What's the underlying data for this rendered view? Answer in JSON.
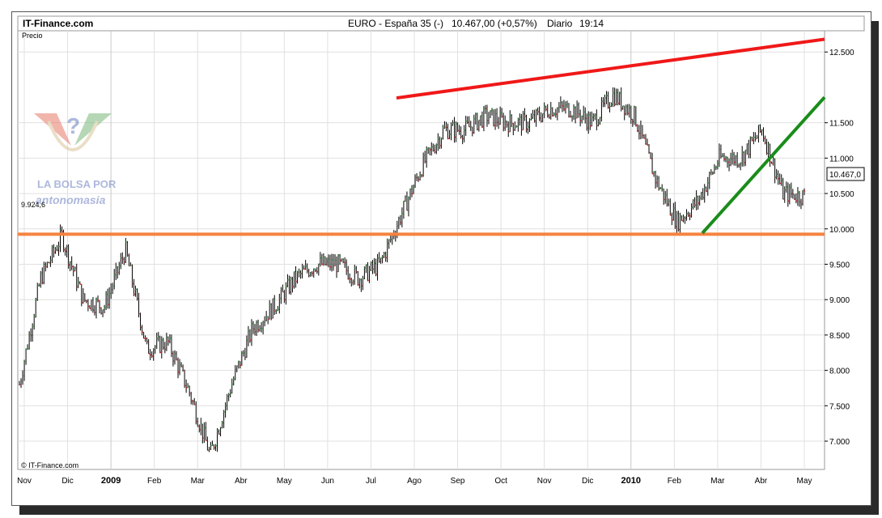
{
  "header": {
    "site": "IT-Finance.com",
    "instrument": "EURO - España 35 (-)",
    "quote": "10.467,00 (+0,57%)",
    "period": "Diario",
    "time": "19:14"
  },
  "logo": {
    "line1": "LA BOLSA POR",
    "line2": "antonomasia"
  },
  "copyright": "© IT-Finance.com",
  "chart_data": {
    "type": "line",
    "title": "EURO - España 35 (-)  10.467,00 (+0,57%)  Diario  19:14",
    "ylabel": "Precio",
    "ylim": [
      6600,
      12800
    ],
    "y_ticks": [
      7000,
      7500,
      8000,
      8500,
      9000,
      9500,
      10000,
      10500,
      11000,
      11500,
      12500
    ],
    "y_tick_labels": [
      "7.000",
      "7.500",
      "8.000",
      "8.500",
      "9.000",
      "9.500",
      "10.000",
      "10.500",
      "11.000",
      "11.500",
      "12.500"
    ],
    "x_ticks": [
      "Nov",
      "Dic",
      "2009",
      "Feb",
      "Mar",
      "Abr",
      "May",
      "Jun",
      "Jul",
      "Ago",
      "Sep",
      "Oct",
      "Nov",
      "Dic",
      "2010",
      "Feb",
      "Mar",
      "Abr",
      "May"
    ],
    "x_tick_bold": [
      false,
      false,
      true,
      false,
      false,
      false,
      false,
      false,
      false,
      false,
      false,
      false,
      false,
      false,
      true,
      false,
      false,
      false,
      false
    ],
    "last_value": 10467,
    "last_value_label": "10.467,0",
    "grid": true,
    "series": [
      {
        "name": "",
        "x": [
          "Nov 08",
          "Nov 08",
          "Nov 08",
          "Dic 08",
          "Dic 08",
          "2009",
          "Feb",
          "Feb",
          "Mar",
          "Mar",
          "Abr",
          "Abr",
          "May",
          "May",
          "Jun",
          "Jun",
          "Jul",
          "Jul",
          "Ago",
          "Ago",
          "Sep",
          "Sep",
          "Oct",
          "Oct",
          "Nov",
          "Nov",
          "Dic",
          "Dic",
          "2010",
          "2010",
          "Feb",
          "Feb",
          "Mar",
          "Mar",
          "Abr",
          "Abr",
          "Abr",
          "May"
        ],
        "values": [
          7800,
          9300,
          9900,
          9000,
          8900,
          9700,
          8300,
          8400,
          7700,
          6800,
          7800,
          8600,
          8900,
          9300,
          9500,
          9500,
          9300,
          9500,
          10200,
          10900,
          11400,
          11400,
          11600,
          11500,
          11500,
          11700,
          11700,
          11500,
          11900,
          11600,
          10700,
          10100,
          10400,
          11000,
          11000,
          11400,
          10500,
          10467
        ]
      }
    ],
    "annotations": [
      {
        "type": "hline",
        "label": "9.924,6",
        "value": 9924.6,
        "color": "#f58340"
      },
      {
        "type": "trend",
        "color": "#f01818",
        "from": {
          "x": "Jul",
          "y": 11850
        },
        "to": {
          "x": "May",
          "y": 12680
        }
      },
      {
        "type": "trend",
        "color": "#1a8c1a",
        "from": {
          "x": "Feb",
          "y": 9940
        },
        "to": {
          "x": "May",
          "y": 11860
        }
      }
    ],
    "colors": {
      "line": "#000000",
      "up": "#3a9a3a",
      "down": "#cc2222",
      "grid": "#e0e0e0"
    }
  }
}
